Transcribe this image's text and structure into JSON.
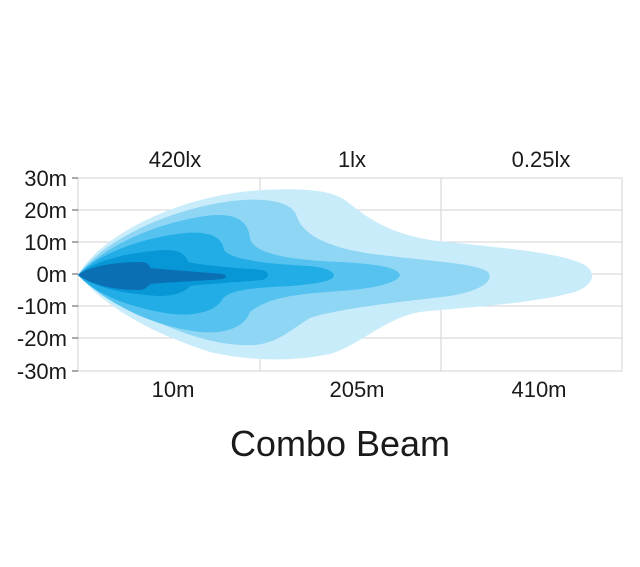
{
  "title": "Combo Beam",
  "lux_labels": [
    "420lx",
    "1lx",
    "0.25lx"
  ],
  "y_ticks": [
    "30m",
    "20m",
    "10m",
    "0m",
    "-10m",
    "-20m",
    "-30m"
  ],
  "x_ticks": [
    "10m",
    "205m",
    "410m"
  ],
  "y_range_m": [
    -30,
    30
  ],
  "grid": true,
  "colors": {
    "zone_outer": "#c9ecfb",
    "zone_2": "#8fd6f5",
    "zone_3": "#55c2ef",
    "zone_4": "#22ade6",
    "zone_5": "#0796d6",
    "zone_core": "#0a6fb3"
  }
}
